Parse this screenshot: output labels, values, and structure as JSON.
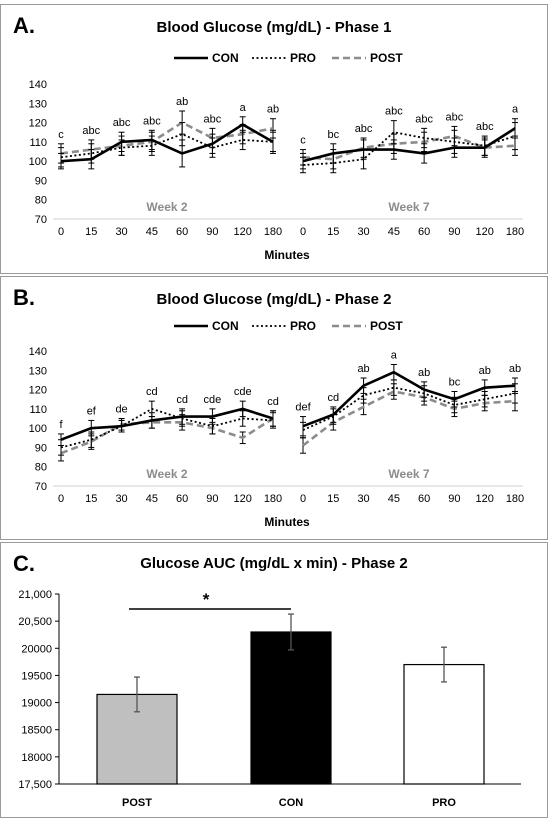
{
  "chart_data": [
    {
      "id": "A",
      "type": "line",
      "panel_label": "A.",
      "title": "Blood Glucose (mg/dL) - Phase 1",
      "xlabel": "Minutes",
      "ylim": [
        70,
        140
      ],
      "yticks": [
        70,
        80,
        90,
        100,
        110,
        120,
        130,
        140
      ],
      "categories": [
        "0",
        "15",
        "30",
        "45",
        "60",
        "90",
        "120",
        "180"
      ],
      "legend": [
        "CON",
        "PRO",
        "POST"
      ],
      "legend_position": "top",
      "groups": [
        {
          "label": "Week 2",
          "significance": [
            "c",
            "abc",
            "abc",
            "abc",
            "ab",
            "abc",
            "a",
            "ab"
          ],
          "series": [
            {
              "name": "CON",
              "values": [
                100,
                101,
                110,
                111,
                104,
                109,
                119,
                110
              ],
              "errors": [
                4,
                5,
                5,
                5,
                7,
                5,
                4,
                6
              ]
            },
            {
              "name": "PRO",
              "values": [
                102,
                104,
                107,
                108,
                114,
                107,
                111,
                110
              ],
              "errors": [
                5,
                5,
                4,
                5,
                6,
                5,
                5,
                5
              ]
            },
            {
              "name": "POST",
              "values": [
                104,
                106,
                108,
                110,
                120,
                112,
                114,
                117
              ],
              "errors": [
                5,
                5,
                5,
                5,
                6,
                5,
                5,
                5
              ]
            }
          ]
        },
        {
          "label": "Week 7",
          "significance": [
            "c",
            "bc",
            "abc",
            "abc",
            "abc",
            "abc",
            "abc",
            "a"
          ],
          "series": [
            {
              "name": "CON",
              "values": [
                100,
                104,
                106,
                106,
                104,
                107,
                107,
                117
              ],
              "errors": [
                4,
                5,
                5,
                5,
                5,
                5,
                4,
                5
              ]
            },
            {
              "name": "PRO",
              "values": [
                98,
                99,
                101,
                115,
                112,
                110,
                108,
                113
              ],
              "errors": [
                4,
                5,
                5,
                6,
                5,
                6,
                5,
                7
              ]
            },
            {
              "name": "POST",
              "values": [
                102,
                101,
                107,
                109,
                110,
                113,
                107,
                108
              ],
              "errors": [
                4,
                5,
                5,
                5,
                5,
                5,
                5,
                5
              ]
            }
          ]
        }
      ]
    },
    {
      "id": "B",
      "type": "line",
      "panel_label": "B.",
      "title": "Blood Glucose (mg/dL) - Phase 2",
      "xlabel": "Minutes",
      "ylim": [
        70,
        140
      ],
      "yticks": [
        70,
        80,
        90,
        100,
        110,
        120,
        130,
        140
      ],
      "categories": [
        "0",
        "15",
        "30",
        "45",
        "60",
        "90",
        "120",
        "180"
      ],
      "legend": [
        "CON",
        "PRO",
        "POST"
      ],
      "legend_position": "top",
      "groups": [
        {
          "label": "Week 2",
          "significance": [
            "f",
            "ef",
            "de",
            "cd",
            "cd",
            "cde",
            "cde",
            "cd"
          ],
          "series": [
            {
              "name": "CON",
              "values": [
                94,
                100,
                101,
                104,
                106,
                106,
                110,
                105
              ],
              "errors": [
                3,
                4,
                3,
                4,
                4,
                4,
                4,
                4
              ]
            },
            {
              "name": "PRO",
              "values": [
                90,
                94,
                101,
                110,
                105,
                101,
                105,
                104
              ],
              "errors": [
                4,
                4,
                3,
                4,
                4,
                4,
                4,
                4
              ]
            },
            {
              "name": "POST",
              "values": [
                87,
                93,
                102,
                103,
                103,
                100,
                95,
                105
              ],
              "errors": [
                4,
                4,
                3,
                3,
                4,
                3,
                3,
                4
              ]
            }
          ]
        },
        {
          "label": "Week 7",
          "significance": [
            "def",
            "cd",
            "ab",
            "a",
            "ab",
            "bc",
            "ab",
            "ab"
          ],
          "series": [
            {
              "name": "CON",
              "values": [
                101,
                107,
                122,
                129,
                120,
                115,
                121,
                122
              ],
              "errors": [
                5,
                4,
                4,
                4,
                4,
                4,
                4,
                4
              ]
            },
            {
              "name": "PRO",
              "values": [
                99,
                106,
                117,
                121,
                118,
                112,
                115,
                118
              ],
              "errors": [
                4,
                4,
                4,
                4,
                4,
                4,
                4,
                5
              ]
            },
            {
              "name": "POST",
              "values": [
                91,
                103,
                111,
                119,
                116,
                110,
                113,
                114
              ],
              "errors": [
                4,
                4,
                4,
                4,
                4,
                4,
                4,
                5
              ]
            }
          ]
        }
      ]
    },
    {
      "id": "C",
      "type": "bar",
      "panel_label": "C.",
      "title": "Glucose AUC (mg/dL x min) - Phase 2",
      "ylim": [
        17500,
        21000
      ],
      "yticks": [
        "17,500",
        "18000",
        "18500",
        "19000",
        "19500",
        "20000",
        "20,500",
        "21,000"
      ],
      "categories": [
        "POST",
        "CON",
        "PRO"
      ],
      "values": [
        19150,
        20300,
        19700
      ],
      "errors": [
        320,
        330,
        320
      ],
      "colors": [
        "#bfbfbf",
        "#000000",
        "#ffffff"
      ],
      "significance_marker": "*",
      "grid": false
    }
  ]
}
